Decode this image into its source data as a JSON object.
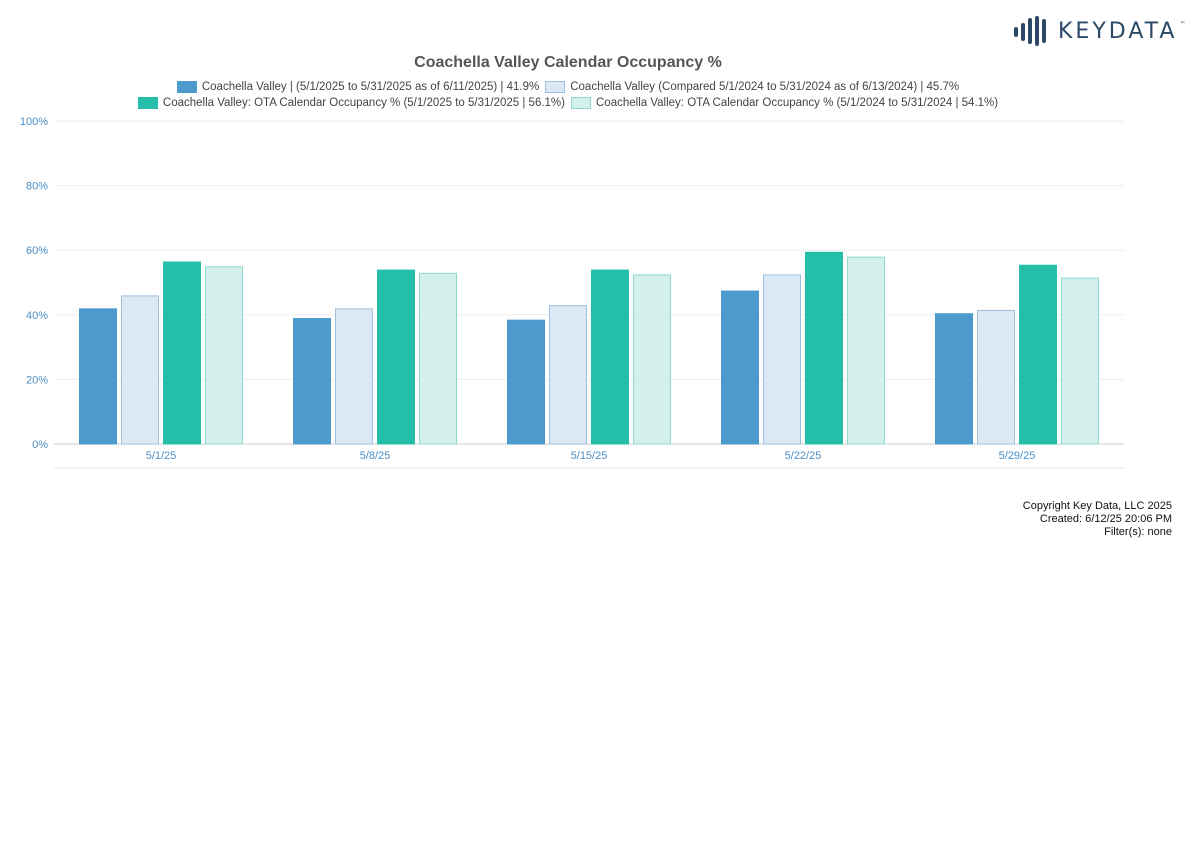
{
  "logo": {
    "text": "KEYDATA",
    "tm": "™",
    "color": "#2c4a66"
  },
  "chart_data": {
    "type": "bar",
    "title": "Coachella Valley Calendar Occupancy %",
    "xlabel": "",
    "ylabel": "",
    "categories": [
      "5/1/25",
      "5/8/25",
      "5/15/25",
      "5/22/25",
      "5/29/25"
    ],
    "ylim": [
      0,
      100
    ],
    "yticks": [
      0,
      20,
      40,
      60,
      80,
      100
    ],
    "ytick_labels": [
      "0%",
      "20%",
      "40%",
      "60%",
      "80%",
      "100%"
    ],
    "grid": true,
    "legend_position": "top-center",
    "series": [
      {
        "name": "Coachella Valley | (5/1/2025 to 5/31/2025 as of 6/11/2025) | 41.9%",
        "values": [
          42,
          39,
          38.5,
          47.5,
          40.5
        ],
        "fill": "#4d9acd",
        "stroke": "#4d9acd"
      },
      {
        "name": "Coachella Valley (Compared 5/1/2024 to 5/31/2024 as of 6/13/2024) | 45.7%",
        "values": [
          46,
          42,
          43,
          52.5,
          41.5
        ],
        "fill": "#dce8f4",
        "stroke": "#9cc0dd"
      },
      {
        "name": "Coachella Valley: OTA Calendar Occupancy % (5/1/2025 to 5/31/2025 | 56.1%)",
        "values": [
          56.5,
          54,
          54,
          59.5,
          55.5
        ],
        "fill": "#25bfa9",
        "stroke": "#25bfa9"
      },
      {
        "name": "Coachella Valley: OTA Calendar Occupancy % (5/1/2024 to 5/31/2024 | 54.1%)",
        "values": [
          55,
          53,
          52.5,
          58,
          51.5
        ],
        "fill": "#d3f0ed",
        "stroke": "#8fd8cd"
      }
    ]
  },
  "footer": {
    "copyright": "Copyright Key Data, LLC 2025",
    "created": "Created: 6/12/25 20:06 PM",
    "filters": "Filter(s): none"
  }
}
